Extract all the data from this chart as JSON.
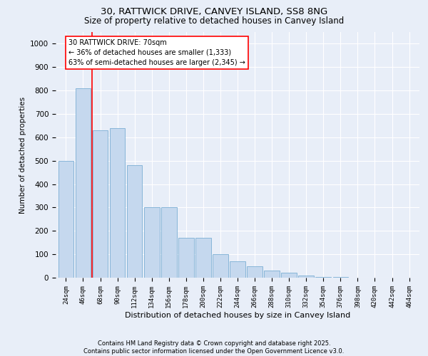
{
  "title1": "30, RATTWICK DRIVE, CANVEY ISLAND, SS8 8NG",
  "title2": "Size of property relative to detached houses in Canvey Island",
  "xlabel": "Distribution of detached houses by size in Canvey Island",
  "ylabel": "Number of detached properties",
  "categories": [
    "24sqm",
    "46sqm",
    "68sqm",
    "90sqm",
    "112sqm",
    "134sqm",
    "156sqm",
    "178sqm",
    "200sqm",
    "222sqm",
    "244sqm",
    "266sqm",
    "288sqm",
    "310sqm",
    "332sqm",
    "354sqm",
    "376sqm",
    "398sqm",
    "420sqm",
    "442sqm",
    "464sqm"
  ],
  "values": [
    500,
    810,
    630,
    640,
    480,
    300,
    300,
    170,
    170,
    100,
    70,
    50,
    30,
    20,
    8,
    4,
    2,
    1,
    1,
    0,
    0
  ],
  "bar_color": "#c5d8ee",
  "bar_edge_color": "#7aaed4",
  "vline_x": 1.5,
  "vline_color": "red",
  "annotation_text": "30 RATTWICK DRIVE: 70sqm\n← 36% of detached houses are smaller (1,333)\n63% of semi-detached houses are larger (2,345) →",
  "annotation_box_color": "white",
  "annotation_box_edge": "red",
  "ylim": [
    0,
    1050
  ],
  "yticks": [
    0,
    100,
    200,
    300,
    400,
    500,
    600,
    700,
    800,
    900,
    1000
  ],
  "footnote": "Contains HM Land Registry data © Crown copyright and database right 2025.\nContains public sector information licensed under the Open Government Licence v3.0.",
  "background_color": "#e8eef8"
}
